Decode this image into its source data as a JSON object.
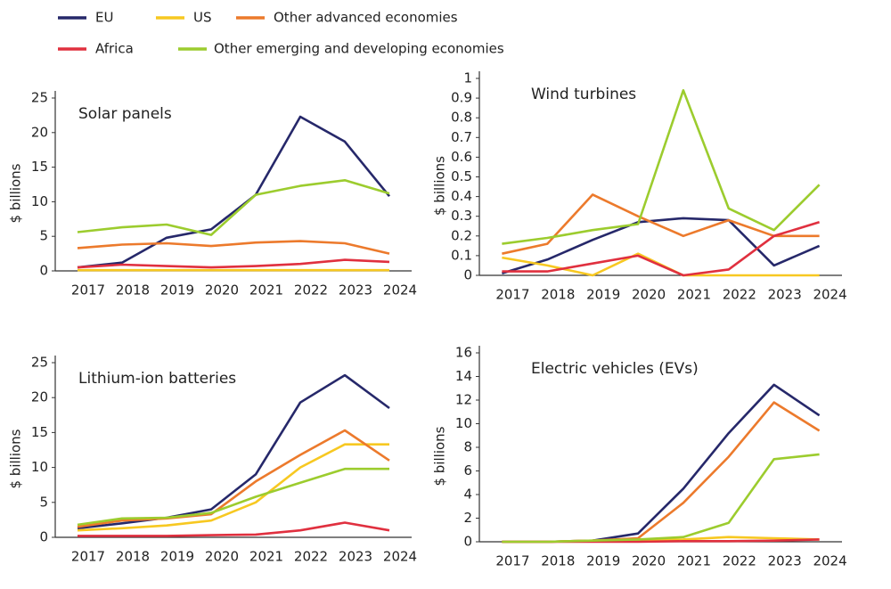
{
  "chart_data": [
    {
      "type": "line",
      "title": "Solar panels",
      "y_label": "$ billions",
      "categories": [
        "2017",
        "2018",
        "2019",
        "2020",
        "2021",
        "2022",
        "2023",
        "2024"
      ],
      "ylim": [
        0,
        25
      ],
      "yticks": [
        0,
        5,
        10,
        15,
        20,
        25
      ],
      "series": [
        {
          "name": "EU",
          "color": "#26286a",
          "values": [
            0.5,
            1.2,
            4.8,
            6.0,
            11,
            22.3,
            18.7,
            10.8
          ]
        },
        {
          "name": "US",
          "color": "#f7c821",
          "values": [
            0.1,
            0.1,
            0.1,
            0.1,
            0.1,
            0.1,
            0.1,
            0.1
          ]
        },
        {
          "name": "Other advanced economies",
          "color": "#ec7a2c",
          "values": [
            3.3,
            3.8,
            4.0,
            3.6,
            4.1,
            4.3,
            4.0,
            2.5
          ]
        },
        {
          "name": "Africa",
          "color": "#e0303f",
          "values": [
            0.5,
            0.9,
            0.7,
            0.5,
            0.7,
            1.0,
            1.6,
            1.3
          ]
        },
        {
          "name": "Other emerging and developing economies",
          "color": "#9ccc2e",
          "values": [
            5.6,
            6.3,
            6.7,
            5.2,
            11,
            12.3,
            13.1,
            11.2
          ]
        }
      ]
    },
    {
      "type": "line",
      "title": "Wind turbines",
      "y_label": "$ billions",
      "categories": [
        "2017",
        "2018",
        "2019",
        "2020",
        "2021",
        "2022",
        "2023",
        "2024"
      ],
      "ylim": [
        0,
        1
      ],
      "yticks": [
        0,
        0.1,
        0.2,
        0.3,
        0.4,
        0.5,
        0.6,
        0.7,
        0.8,
        0.9,
        1
      ],
      "series": [
        {
          "name": "EU",
          "color": "#26286a",
          "values": [
            0.01,
            0.08,
            0.18,
            0.27,
            0.29,
            0.28,
            0.05,
            0.15
          ]
        },
        {
          "name": "US",
          "color": "#f7c821",
          "values": [
            0.09,
            0.05,
            0.0,
            0.11,
            0.0,
            0.0,
            0.0,
            0.0
          ]
        },
        {
          "name": "Other advanced economies",
          "color": "#ec7a2c",
          "values": [
            0.11,
            0.16,
            0.41,
            0.3,
            0.2,
            0.28,
            0.2,
            0.2
          ]
        },
        {
          "name": "Africa",
          "color": "#e0303f",
          "values": [
            0.02,
            0.02,
            0.06,
            0.1,
            0.0,
            0.03,
            0.2,
            0.27
          ]
        },
        {
          "name": "Other emerging and developing economies",
          "color": "#9ccc2e",
          "values": [
            0.16,
            0.19,
            0.23,
            0.26,
            0.94,
            0.34,
            0.23,
            0.46
          ]
        }
      ]
    },
    {
      "type": "line",
      "title": "Lithium-ion batteries",
      "y_label": "$ billions",
      "categories": [
        "2017",
        "2018",
        "2019",
        "2020",
        "2021",
        "2022",
        "2023",
        "2024"
      ],
      "ylim": [
        0,
        25
      ],
      "yticks": [
        0,
        5,
        10,
        15,
        20,
        25
      ],
      "series": [
        {
          "name": "EU",
          "color": "#26286a",
          "values": [
            1.3,
            2.0,
            2.8,
            4.0,
            9.0,
            19.3,
            23.2,
            18.5
          ]
        },
        {
          "name": "US",
          "color": "#f7c821",
          "values": [
            1.0,
            1.3,
            1.7,
            2.4,
            5.0,
            10.0,
            13.3,
            13.3
          ]
        },
        {
          "name": "Other advanced economies",
          "color": "#ec7a2c",
          "values": [
            1.5,
            2.4,
            2.7,
            3.3,
            8.0,
            11.8,
            15.3,
            11.0
          ]
        },
        {
          "name": "Africa",
          "color": "#e0303f",
          "values": [
            0.2,
            0.2,
            0.2,
            0.3,
            0.4,
            1.0,
            2.1,
            1.0
          ]
        },
        {
          "name": "Other emerging and developing economies",
          "color": "#9ccc2e",
          "values": [
            1.8,
            2.7,
            2.8,
            3.5,
            5.8,
            7.8,
            9.8,
            9.8
          ]
        }
      ]
    },
    {
      "type": "line",
      "title": "Electric vehicles (EVs)",
      "y_label": "$ billions",
      "categories": [
        "2017",
        "2018",
        "2019",
        "2020",
        "2021",
        "2022",
        "2023",
        "2024"
      ],
      "ylim": [
        0,
        16
      ],
      "yticks": [
        0,
        2,
        4,
        6,
        8,
        10,
        12,
        14,
        16
      ],
      "series": [
        {
          "name": "EU",
          "color": "#26286a",
          "values": [
            0.0,
            0.0,
            0.1,
            0.7,
            4.5,
            9.2,
            13.3,
            10.7
          ]
        },
        {
          "name": "US",
          "color": "#f7c821",
          "values": [
            0.0,
            0.0,
            0.1,
            0.1,
            0.2,
            0.4,
            0.3,
            0.2
          ]
        },
        {
          "name": "Other advanced economies",
          "color": "#ec7a2c",
          "values": [
            0.0,
            0.0,
            0.1,
            0.3,
            3.3,
            7.2,
            11.8,
            9.4
          ]
        },
        {
          "name": "Africa",
          "color": "#e0303f",
          "values": [
            0.0,
            0.0,
            0.0,
            0.0,
            0.05,
            0.05,
            0.1,
            0.2
          ]
        },
        {
          "name": "Other emerging and developing economies",
          "color": "#9ccc2e",
          "values": [
            0.0,
            0.0,
            0.1,
            0.2,
            0.4,
            1.6,
            7.0,
            7.4
          ]
        }
      ]
    }
  ]
}
